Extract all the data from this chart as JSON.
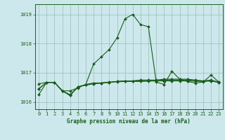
{
  "title": "Graphe pression niveau de la mer (hPa)",
  "background_color": "#cde8ec",
  "grid_color": "#99bbbb",
  "line_color": "#1a5c1a",
  "marker_color": "#1a5c1a",
  "xlim": [
    -0.5,
    23.5
  ],
  "ylim": [
    1015.75,
    1019.35
  ],
  "yticks": [
    1016,
    1017,
    1018,
    1019
  ],
  "xticks": [
    0,
    1,
    2,
    3,
    4,
    5,
    6,
    7,
    8,
    9,
    10,
    11,
    12,
    13,
    14,
    15,
    16,
    17,
    18,
    19,
    20,
    21,
    22,
    23
  ],
  "series1": [
    1016.62,
    1016.67,
    1016.67,
    1016.38,
    1016.25,
    1016.5,
    1016.6,
    1017.3,
    1017.55,
    1017.8,
    1018.2,
    1018.85,
    1019.0,
    1018.65,
    1018.58,
    1016.68,
    1016.6,
    1017.05,
    1016.78,
    1016.7,
    1016.65,
    1016.68,
    1016.92,
    1016.68
  ],
  "series2": [
    1016.25,
    1016.67,
    1016.67,
    1016.38,
    1016.38,
    1016.48,
    1016.6,
    1016.65,
    1016.65,
    1016.68,
    1016.7,
    1016.72,
    1016.72,
    1016.75,
    1016.75,
    1016.75,
    1016.78,
    1016.78,
    1016.78,
    1016.78,
    1016.75,
    1016.72,
    1016.75,
    1016.68
  ],
  "series3": [
    1016.45,
    1016.67,
    1016.67,
    1016.38,
    1016.22,
    1016.52,
    1016.58,
    1016.62,
    1016.65,
    1016.67,
    1016.7,
    1016.72,
    1016.72,
    1016.73,
    1016.73,
    1016.73,
    1016.75,
    1016.75,
    1016.75,
    1016.75,
    1016.73,
    1016.72,
    1016.72,
    1016.67
  ],
  "series4": [
    1016.45,
    1016.67,
    1016.67,
    1016.38,
    1016.22,
    1016.52,
    1016.58,
    1016.62,
    1016.65,
    1016.67,
    1016.69,
    1016.7,
    1016.7,
    1016.7,
    1016.71,
    1016.72,
    1016.72,
    1016.72,
    1016.72,
    1016.72,
    1016.71,
    1016.7,
    1016.72,
    1016.67
  ]
}
